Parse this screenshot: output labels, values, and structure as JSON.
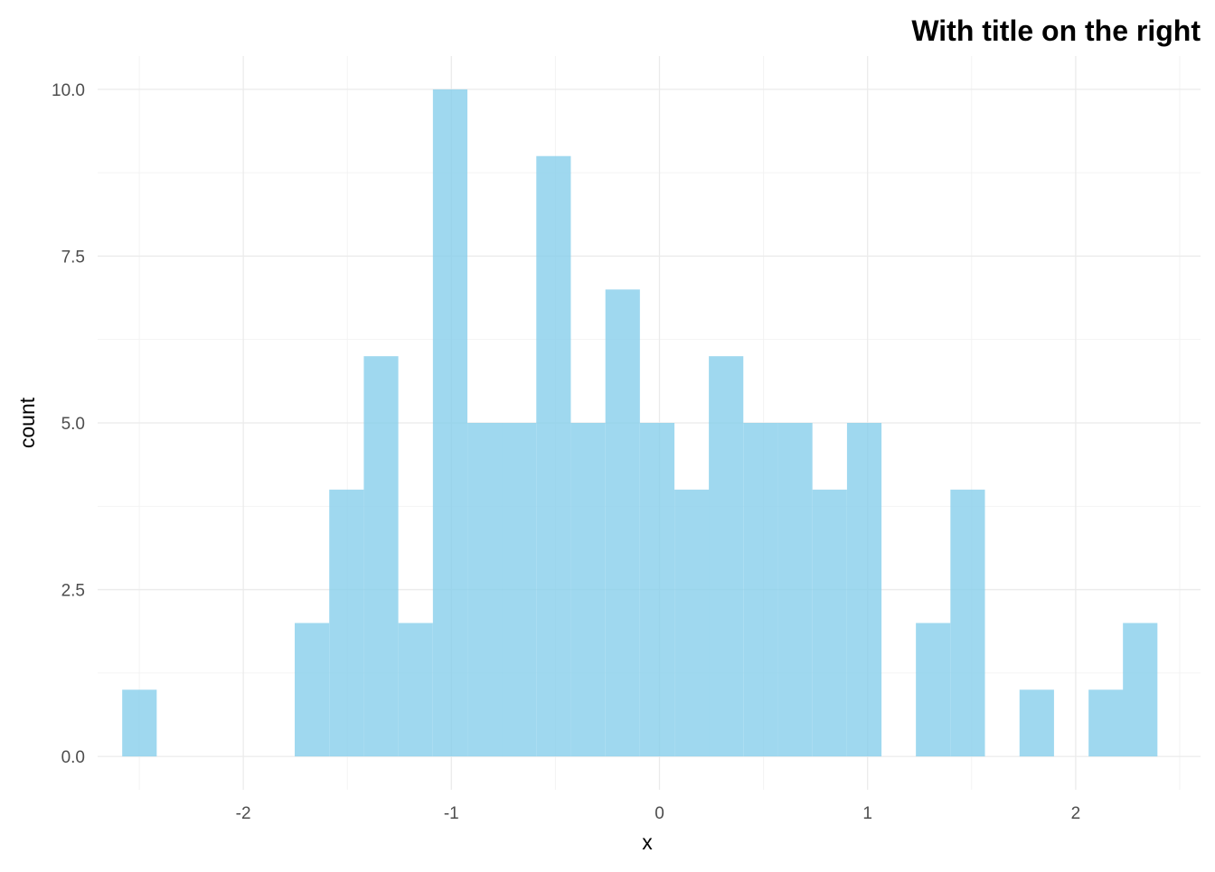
{
  "chart_data": {
    "type": "bar",
    "subtype": "histogram",
    "title": "With title on the right",
    "title_alignment": "right",
    "xlabel": "x",
    "ylabel": "count",
    "xlim": [
      -2.7,
      2.6
    ],
    "ylim": [
      -0.5,
      10.5
    ],
    "x_ticks": [
      -2,
      -1,
      0,
      1,
      2
    ],
    "x_tick_labels": [
      "-2",
      "-1",
      "0",
      "1",
      "2"
    ],
    "y_ticks": [
      0,
      2.5,
      5,
      7.5,
      10
    ],
    "y_tick_labels": [
      "0.0",
      "2.5",
      "5.0",
      "7.5",
      "10.0"
    ],
    "bin_width": 0.1658,
    "bins": [
      {
        "center": -2.499,
        "count": 1
      },
      {
        "center": -2.333,
        "count": 0
      },
      {
        "center": -2.167,
        "count": 0
      },
      {
        "center": -2.001,
        "count": 0
      },
      {
        "center": -1.835,
        "count": 0
      },
      {
        "center": -1.67,
        "count": 2
      },
      {
        "center": -1.504,
        "count": 4
      },
      {
        "center": -1.338,
        "count": 6
      },
      {
        "center": -1.172,
        "count": 2
      },
      {
        "center": -1.006,
        "count": 10
      },
      {
        "center": -0.84,
        "count": 5
      },
      {
        "center": -0.675,
        "count": 5
      },
      {
        "center": -0.509,
        "count": 9
      },
      {
        "center": -0.343,
        "count": 5
      },
      {
        "center": -0.177,
        "count": 7
      },
      {
        "center": -0.011,
        "count": 5
      },
      {
        "center": 0.155,
        "count": 4
      },
      {
        "center": 0.32,
        "count": 6
      },
      {
        "center": 0.486,
        "count": 5
      },
      {
        "center": 0.652,
        "count": 5
      },
      {
        "center": 0.818,
        "count": 4
      },
      {
        "center": 0.984,
        "count": 5
      },
      {
        "center": 1.15,
        "count": 0
      },
      {
        "center": 1.315,
        "count": 2
      },
      {
        "center": 1.481,
        "count": 4
      },
      {
        "center": 1.647,
        "count": 0
      },
      {
        "center": 1.813,
        "count": 1
      },
      {
        "center": 1.979,
        "count": 0
      },
      {
        "center": 2.145,
        "count": 1
      },
      {
        "center": 2.31,
        "count": 2
      }
    ],
    "bar_color": "#87ceeb",
    "bar_opacity": 0.8,
    "grid": true,
    "theme": "minimal"
  }
}
